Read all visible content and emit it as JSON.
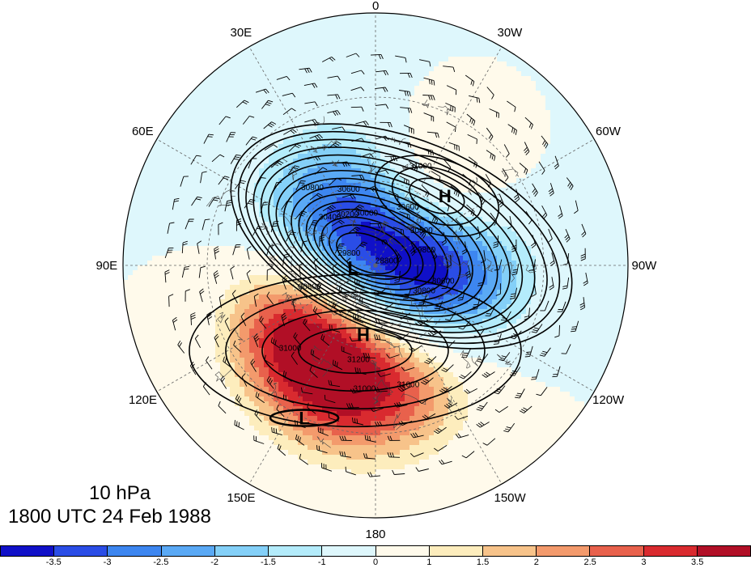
{
  "title": {
    "line1": "10 hPa",
    "line2": "1800 UTC 24 Feb 1988"
  },
  "longitude_labels": [
    {
      "text": "0",
      "lon": 0
    },
    {
      "text": "30W",
      "lon": -30
    },
    {
      "text": "60W",
      "lon": -60
    },
    {
      "text": "90W",
      "lon": -90
    },
    {
      "text": "120W",
      "lon": -120
    },
    {
      "text": "150W",
      "lon": -150
    },
    {
      "text": "180",
      "lon": 180
    },
    {
      "text": "150E",
      "lon": 150
    },
    {
      "text": "120E",
      "lon": 120
    },
    {
      "text": "90E",
      "lon": 90
    },
    {
      "text": "60E",
      "lon": 60
    },
    {
      "text": "30E",
      "lon": 30
    }
  ],
  "pressure_centers": [
    {
      "symbol": "H",
      "lon": -45,
      "lat": 55
    },
    {
      "symbol": "L",
      "lon": 95,
      "lat": 82
    },
    {
      "symbol": "H",
      "lon": 170,
      "lat": 65
    },
    {
      "symbol": "L",
      "lon": 155,
      "lat": 30
    }
  ],
  "contour_labels": [
    {
      "text": "31000",
      "lon": -25,
      "lat": 52
    },
    {
      "text": "31000",
      "lon": 135,
      "lat": 47
    },
    {
      "text": "31000",
      "lon": -165,
      "lat": 45
    },
    {
      "text": "31000",
      "lon": 175,
      "lat": 45
    },
    {
      "text": "31200",
      "lon": 170,
      "lat": 55
    },
    {
      "text": "30800",
      "lon": 40,
      "lat": 55
    },
    {
      "text": "30800",
      "lon": -55,
      "lat": 70
    },
    {
      "text": "30800",
      "lon": 110,
      "lat": 65
    },
    {
      "text": "30800",
      "lon": -120,
      "lat": 70
    },
    {
      "text": "30600",
      "lon": 20,
      "lat": 62
    },
    {
      "text": "30600",
      "lon": -30,
      "lat": 67
    },
    {
      "text": "30600",
      "lon": -105,
      "lat": 65
    },
    {
      "text": "30400",
      "lon": 45,
      "lat": 67
    },
    {
      "text": "30000",
      "lon": 10,
      "lat": 72
    },
    {
      "text": "29800",
      "lon": 70,
      "lat": 80
    },
    {
      "text": "28800",
      "lon": -80,
      "lat": 86
    },
    {
      "text": "30200",
      "lon": 30,
      "lat": 70
    },
    {
      "text": "29800",
      "lon": -75,
      "lat": 72
    }
  ],
  "colorbar": {
    "colors": [
      "#1010c8",
      "#2a4de6",
      "#3d86f0",
      "#5aa9f5",
      "#84d0f8",
      "#b4ecfb",
      "#def7fc",
      "#fffaeb",
      "#fdedbd",
      "#f7c38a",
      "#f39a6c",
      "#e8614c",
      "#d92a2f",
      "#b10f26"
    ],
    "tick_labels": [
      "-3.5",
      "-3",
      "-2.5",
      "-2",
      "-1.5",
      "-1",
      "0",
      "1",
      "1.5",
      "2",
      "2.5",
      "3",
      "3.5"
    ]
  },
  "field": {
    "anomaly_centers": [
      {
        "lon": -95,
        "lat": 68,
        "value": -3.6,
        "spread": 22
      },
      {
        "lon": 35,
        "lat": 68,
        "value": -2.2,
        "spread": 22
      },
      {
        "lon": -20,
        "lat": 85,
        "value": -1.3,
        "spread": 30
      },
      {
        "lon": -40,
        "lat": 55,
        "value": 2.7,
        "spread": 18
      },
      {
        "lon": 160,
        "lat": 50,
        "value": 3.6,
        "spread": 20
      },
      {
        "lon": 120,
        "lat": 55,
        "value": 2.6,
        "spread": 18
      },
      {
        "lon": -160,
        "lat": 48,
        "value": 2.0,
        "spread": 20
      }
    ]
  }
}
